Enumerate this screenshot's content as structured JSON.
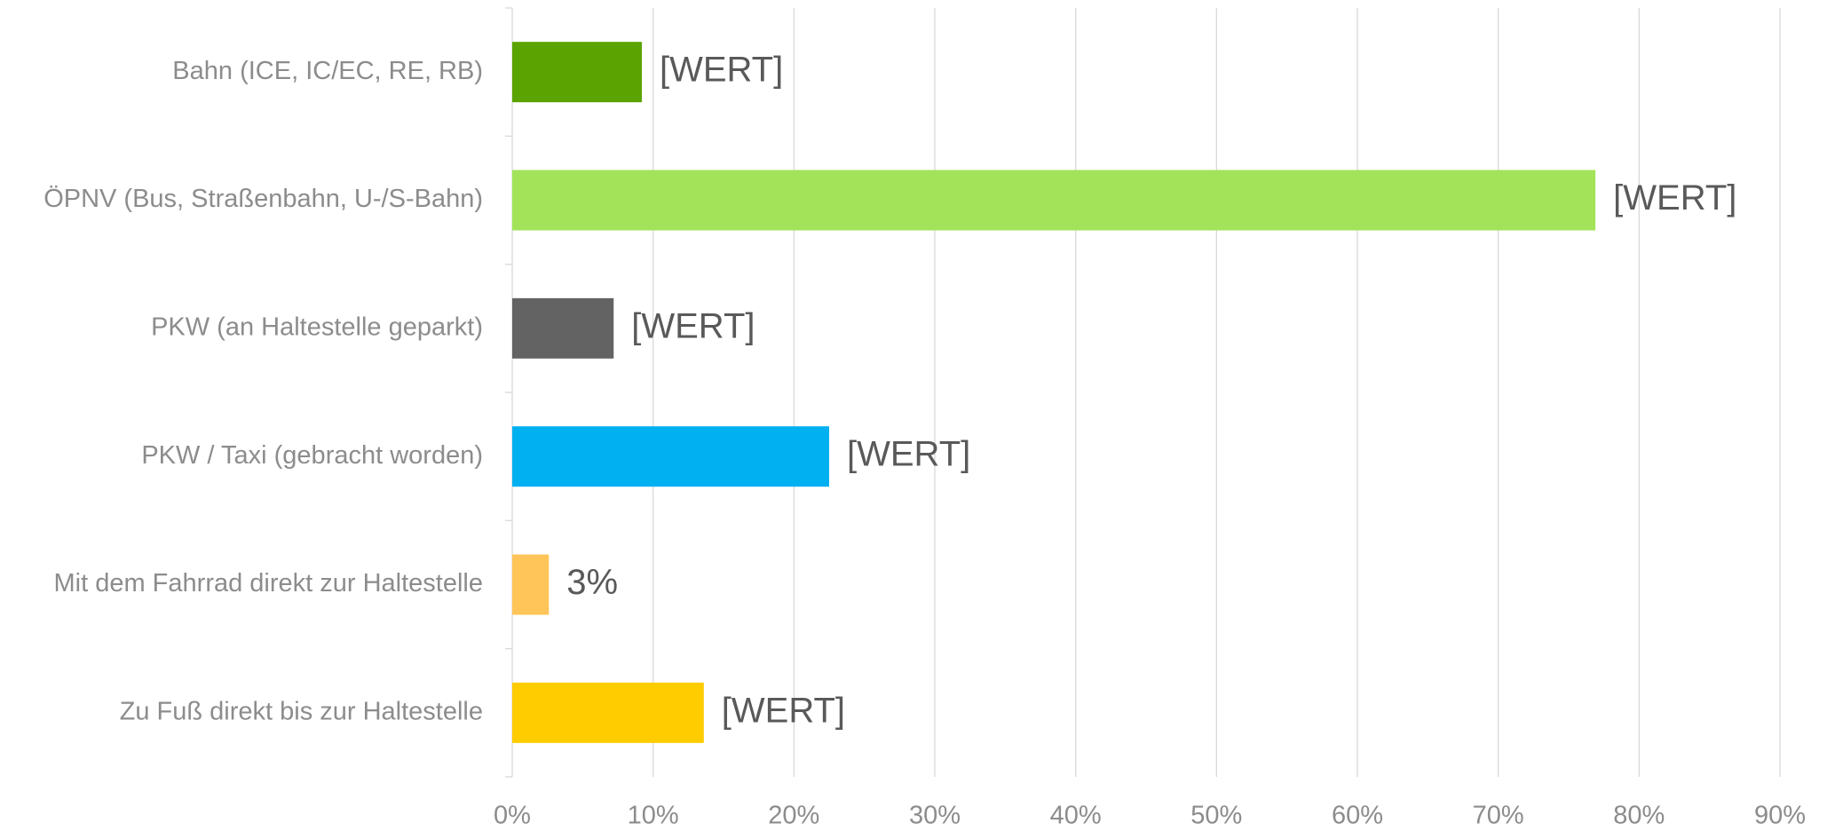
{
  "chart_data": {
    "type": "bar",
    "orientation": "horizontal",
    "categories": [
      "Bahn (ICE, IC/EC, RE, RB)",
      "ÖPNV (Bus, Straßenbahn, U-/S-Bahn)",
      "PKW (an Haltestelle geparkt)",
      "PKW / Taxi (gebracht worden)",
      "Mit dem Fahrrad direkt zur Haltestelle",
      "Zu Fuß direkt bis zur Haltestelle"
    ],
    "values": [
      9.2,
      76.9,
      7.2,
      22.5,
      2.6,
      13.6
    ],
    "value_labels": [
      "[WERT]",
      "[WERT]",
      "[WERT]",
      "[WERT]",
      "3%",
      "[WERT]"
    ],
    "colors": [
      "#5ba300",
      "#a2e35a",
      "#636363",
      "#00b0f0",
      "#ffc559",
      "#ffcc00"
    ],
    "xlim": [
      0,
      90
    ],
    "xticks": [
      {
        "value": 0,
        "label": "0%"
      },
      {
        "value": 10,
        "label": "10%"
      },
      {
        "value": 20,
        "label": "20%"
      },
      {
        "value": 30,
        "label": "30%"
      },
      {
        "value": 40,
        "label": "40%"
      },
      {
        "value": 50,
        "label": "50%"
      },
      {
        "value": 60,
        "label": "60%"
      },
      {
        "value": 70,
        "label": "70%"
      },
      {
        "value": 80,
        "label": "80%"
      },
      {
        "value": 90,
        "label": "90%"
      }
    ],
    "grid": true
  }
}
